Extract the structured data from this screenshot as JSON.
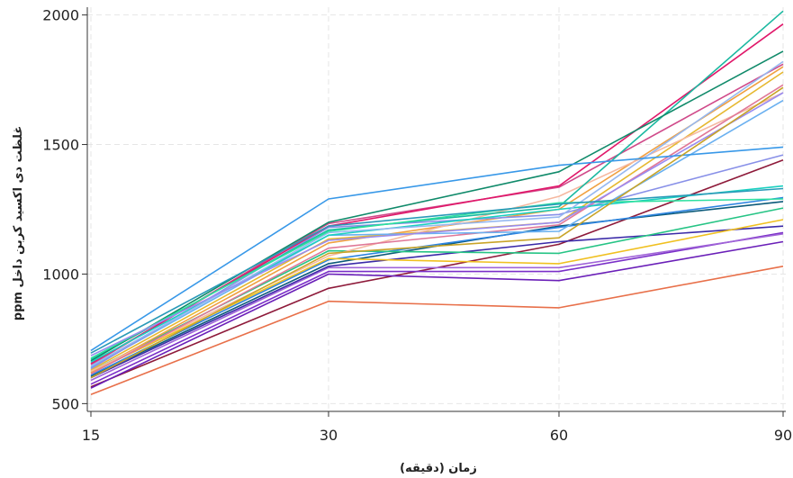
{
  "chart_data": {
    "type": "line",
    "xlabel": "زمان (دقیقه)",
    "ylabel": "غلظت دی اکسید کربن داخل ppm",
    "x": [
      15,
      30,
      60,
      90
    ],
    "x_tick_labels": [
      "15",
      "30",
      "60",
      "90"
    ],
    "y_ticks": [
      500,
      1000,
      1500,
      2000
    ],
    "ylim": [
      470,
      2030
    ],
    "grid": true,
    "series": [
      {
        "color": "#e8704a",
        "values": [
          535,
          895,
          870,
          1030
        ]
      },
      {
        "color": "#8e1a3a",
        "values": [
          565,
          945,
          1115,
          1440
        ]
      },
      {
        "color": "#6a1fb8",
        "values": [
          560,
          1000,
          975,
          1125
        ]
      },
      {
        "color": "#7a2fc8",
        "values": [
          575,
          1010,
          1010,
          1160
        ]
      },
      {
        "color": "#a064d8",
        "values": [
          590,
          1025,
          1025,
          1155
        ]
      },
      {
        "color": "#3a2aa8",
        "values": [
          600,
          1030,
          1125,
          1185
        ]
      },
      {
        "color": "#0c5a7a",
        "values": [
          605,
          1040,
          1185,
          1280
        ]
      },
      {
        "color": "#2c84e0",
        "values": [
          610,
          1055,
          1180,
          1295
        ]
      },
      {
        "color": "#f0c020",
        "values": [
          620,
          1060,
          1040,
          1210
        ]
      },
      {
        "color": "#26c485",
        "values": [
          625,
          1090,
          1080,
          1255
        ]
      },
      {
        "color": "#f0a040",
        "values": [
          620,
          1120,
          1250,
          1800
        ]
      },
      {
        "color": "#e6b830",
        "values": [
          630,
          1135,
          1200,
          1780
        ]
      },
      {
        "color": "#f5b8a0",
        "values": [
          625,
          1070,
          1300,
          1700
        ]
      },
      {
        "color": "#e07898",
        "values": [
          615,
          1100,
          1190,
          1730
        ]
      },
      {
        "color": "#6ab0f0",
        "values": [
          640,
          1150,
          1165,
          1670
        ]
      },
      {
        "color": "#8890e8",
        "values": [
          635,
          1180,
          1230,
          1460
        ]
      },
      {
        "color": "#d04a8a",
        "values": [
          650,
          1195,
          1335,
          1810
        ]
      },
      {
        "color": "#e0186a",
        "values": [
          655,
          1185,
          1340,
          1965
        ]
      },
      {
        "color": "#1ab8a0",
        "values": [
          670,
          1170,
          1260,
          2015
        ]
      },
      {
        "color": "#108a6a",
        "values": [
          665,
          1200,
          1395,
          1860
        ]
      },
      {
        "color": "#1ad0c0",
        "values": [
          660,
          1150,
          1250,
          1340
        ]
      },
      {
        "color": "#96b8f0",
        "values": [
          645,
          1160,
          1220,
          1820
        ]
      },
      {
        "color": "#2fe0a0",
        "values": [
          675,
          1165,
          1275,
          1290
        ]
      },
      {
        "color": "#9a8cf0",
        "values": [
          685,
          1130,
          1200,
          1700
        ]
      },
      {
        "color": "#3898e8",
        "values": [
          705,
          1290,
          1420,
          1490
        ]
      },
      {
        "color": "#2a9ab8",
        "values": [
          695,
          1185,
          1270,
          1330
        ]
      },
      {
        "color": "#c8a428",
        "values": [
          600,
          1080,
          1140,
          1720
        ]
      }
    ]
  }
}
